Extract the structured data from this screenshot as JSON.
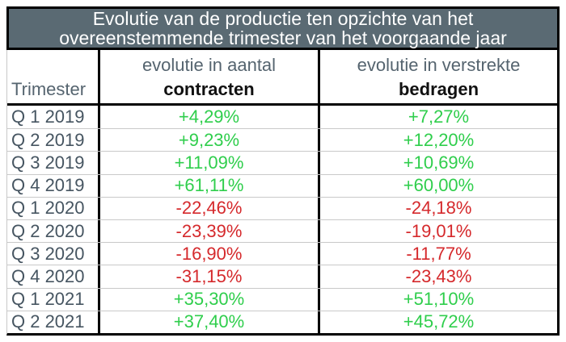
{
  "title": {
    "line1": "Evolutie van de productie ten opzichte van het",
    "line2": "overeenstemmende trimester van het voorgaande jaar"
  },
  "header": {
    "trimester": "Trimester",
    "col2_line1": "evolutie in aantal",
    "col2_line2": "contracten",
    "col3_line1": "evolutie in verstrekte",
    "col3_line2": "bedragen"
  },
  "rows": [
    {
      "trimester": "Q 1 2019",
      "contracten": "+4,29%",
      "bedragen": "+7,27%"
    },
    {
      "trimester": "Q 2 2019",
      "contracten": "+9,23%",
      "bedragen": "+12,20%"
    },
    {
      "trimester": "Q 3 2019",
      "contracten": "+11,09%",
      "bedragen": "+10,69%"
    },
    {
      "trimester": "Q 4 2019",
      "contracten": "+61,11%",
      "bedragen": "+60,00%"
    },
    {
      "trimester": "Q 1 2020",
      "contracten": "-22,46%",
      "bedragen": "-24,18%"
    },
    {
      "trimester": "Q 2 2020",
      "contracten": "-23,39%",
      "bedragen": "-19,01%"
    },
    {
      "trimester": "Q 3 2020",
      "contracten": "-16,90%",
      "bedragen": "-11,77%"
    },
    {
      "trimester": "Q 4 2020",
      "contracten": "-31,15%",
      "bedragen": "-23,43%"
    },
    {
      "trimester": "Q 1 2021",
      "contracten": "+35,30%",
      "bedragen": "+51,10%"
    },
    {
      "trimester": "Q 2 2021",
      "contracten": "+37,40%",
      "bedragen": "+45,72%"
    }
  ],
  "colors": {
    "title_bg": "#5a6a73",
    "title_text": "#ffffff",
    "positive": "#2fce4c",
    "negative": "#d5292c",
    "border_black": "#000000",
    "row_line": "#c9c9c9",
    "label_text": "#465561",
    "header_muted": "#55646f"
  },
  "chart_data": {
    "type": "table",
    "title": "Evolutie van de productie ten opzichte van het overeenstemmende trimester van het voorgaande jaar",
    "columns": [
      "Trimester",
      "evolutie in aantal contracten",
      "evolutie in verstrekte bedragen"
    ],
    "rows": [
      [
        "Q 1 2019",
        "+4,29%",
        "+7,27%"
      ],
      [
        "Q 2 2019",
        "+9,23%",
        "+12,20%"
      ],
      [
        "Q 3 2019",
        "+11,09%",
        "+10,69%"
      ],
      [
        "Q 4 2019",
        "+61,11%",
        "+60,00%"
      ],
      [
        "Q 1 2020",
        "-22,46%",
        "-24,18%"
      ],
      [
        "Q 2 2020",
        "-23,39%",
        "-19,01%"
      ],
      [
        "Q 3 2020",
        "-16,90%",
        "-11,77%"
      ],
      [
        "Q 4 2020",
        "-31,15%",
        "-23,43%"
      ],
      [
        "Q 1 2021",
        "+35,30%",
        "+51,10%"
      ],
      [
        "Q 2 2021",
        "+37,40%",
        "+45,72%"
      ]
    ],
    "value_color_rule": "positive values green, negative values red"
  }
}
